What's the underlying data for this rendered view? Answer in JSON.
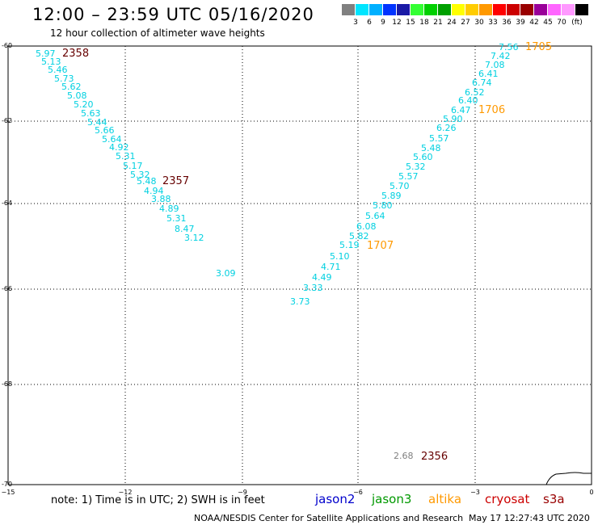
{
  "header": {
    "title": "12:00 – 23:59 UTC 05/16/2020",
    "subtitle": "12 hour collection of altimeter wave heights"
  },
  "colorbar": {
    "colors": [
      "#808080",
      "#00e5ff",
      "#00b0ff",
      "#0033ff",
      "#1a1aa6",
      "#33ff33",
      "#00d000",
      "#00a000",
      "#ffff00",
      "#ffcc00",
      "#ff9900",
      "#ff0000",
      "#cc0000",
      "#990000",
      "#990099",
      "#ff66ff",
      "#ff99ff",
      "#000000"
    ],
    "labels": [
      "3",
      "6",
      "9",
      "12",
      "15",
      "18",
      "21",
      "24",
      "27",
      "30",
      "33",
      "36",
      "39",
      "42",
      "45",
      "70",
      "(ft)"
    ]
  },
  "axes": {
    "x_ticks": [
      "−15",
      "−12",
      "−9",
      "−6",
      "−3",
      "0"
    ],
    "y_ticks": [
      "-60",
      "-62",
      "-64",
      "-66",
      "-68",
      "-70"
    ]
  },
  "passes": [
    {
      "label": "2358",
      "color": "#660000"
    },
    {
      "label": "2357",
      "color": "#660000"
    },
    {
      "label": "1705",
      "color": "#ff9900"
    },
    {
      "label": "1706",
      "color": "#ff9900"
    },
    {
      "label": "1707",
      "color": "#ff9900"
    },
    {
      "label": "2356",
      "color": "#660000"
    }
  ],
  "wave_heights": {
    "track_2358": [
      "5.97",
      "5.13",
      "5.46",
      "5.73",
      "5.62",
      "5.08",
      "5.20",
      "5.63",
      "5.44",
      "5.66",
      "5.64",
      "4.92",
      "5.31",
      "5.17",
      "5.32",
      "5.48",
      "4.94",
      "3.88",
      "4.89",
      "5.31",
      "8.47",
      "3.12"
    ],
    "track_1705": [
      "7.56",
      "7.42",
      "7.08",
      "6.41",
      "6.74",
      "6.52",
      "6.40",
      "6.47",
      "5.90",
      "6.26",
      "5.57",
      "5.48",
      "5.60",
      "5.32",
      "5.57",
      "5.70",
      "5.89",
      "5.80",
      "5.64",
      "6.08",
      "5.82",
      "5.19",
      "5.10",
      "4.71",
      "4.49",
      "3.33",
      "3.73"
    ],
    "isolated_1": "3.09",
    "isolated_2": "2.68"
  },
  "footer": {
    "note": "note: 1) Time is in UTC; 2) SWH is in feet",
    "satellites": [
      {
        "name": "jason2",
        "color": "#0000cc"
      },
      {
        "name": "jason3",
        "color": "#009900"
      },
      {
        "name": "altika",
        "color": "#ff9900"
      },
      {
        "name": "cryosat",
        "color": "#cc0000"
      },
      {
        "name": "s3a",
        "color": "#990000"
      }
    ],
    "credit": "NOAA/NESDIS Center for Satellite Applications and Research",
    "timestamp": "May 17 12:27:43 UTC 2020"
  }
}
